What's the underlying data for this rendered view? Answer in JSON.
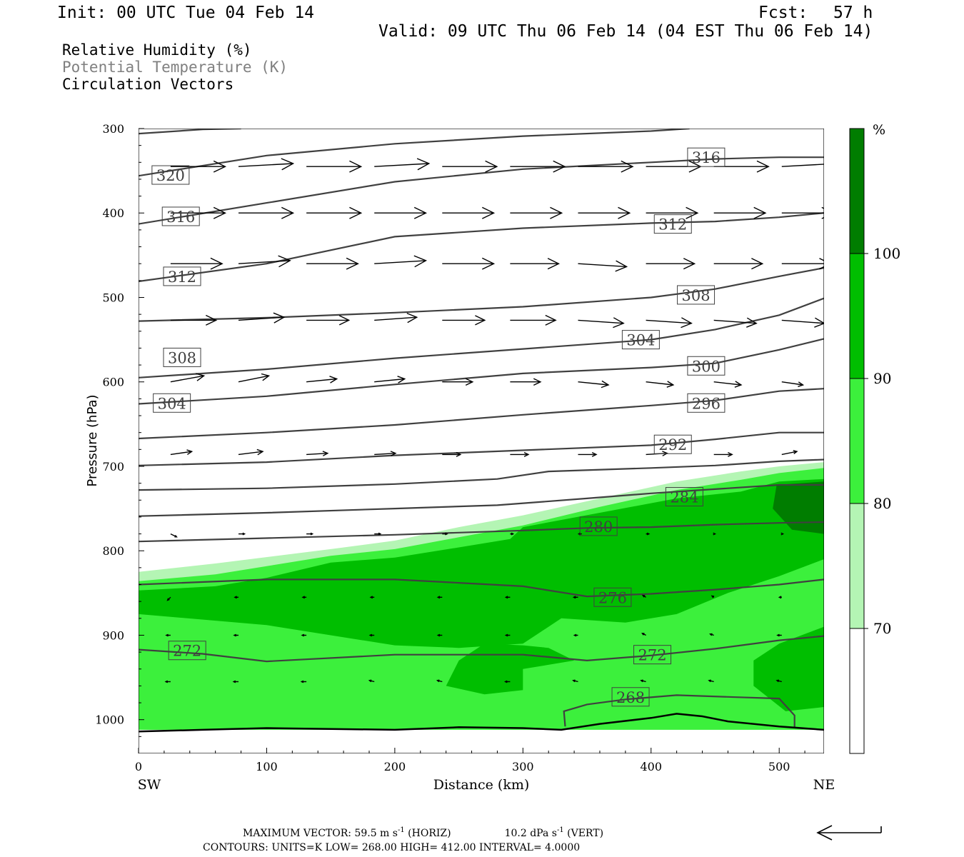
{
  "header": {
    "init": "Init: 00 UTC Tue 04 Feb 14",
    "fcst_label": "Fcst:",
    "fcst_value": "57 h",
    "valid": "Valid: 09 UTC Thu 06 Feb 14 (04 EST Thu 06 Feb 14)"
  },
  "fields": {
    "rh": "Relative Humidity (%)",
    "theta": "Potential Temperature (K)",
    "vectors": "Circulation Vectors"
  },
  "footer": {
    "max_prefix": "MAXIMUM VECTOR:  59.5 m s",
    "max_exp": "-1",
    "max_mid": " (HORIZ)",
    "max_vert": "10.2 dPa s",
    "max_vert_exp": "-1",
    "max_vert_suffix": " (VERT)",
    "contours": "CONTOURS:  UNITS=K  LOW=  268.00       HIGH=  412.00       INTERVAL=    4.0000"
  },
  "chart_data": {
    "type": "heatmap",
    "title": "",
    "xlabel": "Distance (km)",
    "ylabel": "Pressure (hPa)",
    "xlim": [
      0,
      535
    ],
    "ylim": [
      1040,
      300
    ],
    "x_ticks": [
      0,
      100,
      200,
      300,
      400,
      500
    ],
    "y_ticks": [
      300,
      400,
      500,
      600,
      700,
      800,
      900,
      1000
    ],
    "x_end_labels": {
      "left": "SW",
      "right": "NE"
    },
    "colorbar": {
      "unit": "%",
      "levels": [
        70,
        80,
        90,
        100
      ],
      "colors": [
        "#ffffff",
        "#b4f5b4",
        "#3cf03c",
        "#00be00",
        "#007d00"
      ]
    },
    "rh_regions": [
      {
        "level": 70,
        "polygon": [
          [
            0,
            825
          ],
          [
            60,
            815
          ],
          [
            150,
            798
          ],
          [
            200,
            788
          ],
          [
            250,
            772
          ],
          [
            300,
            758
          ],
          [
            360,
            738
          ],
          [
            420,
            718
          ],
          [
            470,
            706
          ],
          [
            500,
            700
          ],
          [
            535,
            695
          ],
          [
            535,
            1012
          ],
          [
            0,
            1012
          ]
        ]
      },
      {
        "level": 80,
        "polygon": [
          [
            0,
            836
          ],
          [
            60,
            828
          ],
          [
            150,
            806
          ],
          [
            200,
            798
          ],
          [
            250,
            784
          ],
          [
            300,
            770
          ],
          [
            360,
            748
          ],
          [
            420,
            728
          ],
          [
            470,
            716
          ],
          [
            500,
            708
          ],
          [
            535,
            702
          ],
          [
            535,
            1012
          ],
          [
            0,
            1012
          ]
        ]
      },
      {
        "level": 90,
        "polygon": [
          [
            0,
            847
          ],
          [
            60,
            842
          ],
          [
            100,
            832
          ],
          [
            150,
            814
          ],
          [
            200,
            808
          ],
          [
            250,
            796
          ],
          [
            290,
            786
          ],
          [
            300,
            772
          ],
          [
            360,
            755
          ],
          [
            420,
            738
          ],
          [
            470,
            730
          ],
          [
            500,
            718
          ],
          [
            535,
            715
          ],
          [
            535,
            810
          ],
          [
            500,
            830
          ],
          [
            460,
            850
          ],
          [
            420,
            875
          ],
          [
            380,
            885
          ],
          [
            330,
            880
          ],
          [
            300,
            910
          ],
          [
            250,
            915
          ],
          [
            200,
            912
          ],
          [
            150,
            900
          ],
          [
            100,
            888
          ],
          [
            0,
            875
          ]
        ]
      },
      {
        "level": 90,
        "polygon": [
          [
            240,
            960
          ],
          [
            250,
            930
          ],
          [
            270,
            910
          ],
          [
            300,
            912
          ],
          [
            320,
            915
          ],
          [
            340,
            930
          ],
          [
            300,
            940
          ],
          [
            300,
            965
          ],
          [
            270,
            970
          ]
        ]
      },
      {
        "level": 90,
        "polygon": [
          [
            480,
            960
          ],
          [
            480,
            930
          ],
          [
            500,
            910
          ],
          [
            535,
            890
          ],
          [
            535,
            985
          ],
          [
            505,
            990
          ]
        ]
      },
      {
        "level": 100,
        "polygon": [
          [
            498,
            722
          ],
          [
            535,
            718
          ],
          [
            535,
            780
          ],
          [
            510,
            775
          ],
          [
            495,
            750
          ]
        ]
      }
    ],
    "theta_contours": [
      {
        "value": 268,
        "points": [
          [
            333,
            1008
          ],
          [
            332,
            990
          ],
          [
            350,
            982
          ],
          [
            380,
            976
          ],
          [
            420,
            971
          ],
          [
            460,
            973
          ],
          [
            500,
            975
          ],
          [
            512,
            995
          ],
          [
            512,
            1010
          ]
        ]
      },
      {
        "value": 272,
        "points": [
          [
            0,
            917
          ],
          [
            50,
            922
          ],
          [
            100,
            931
          ],
          [
            200,
            923
          ],
          [
            300,
            923
          ],
          [
            350,
            930
          ],
          [
            400,
            924
          ],
          [
            450,
            916
          ],
          [
            500,
            906
          ],
          [
            535,
            901
          ]
        ]
      },
      {
        "value": 276,
        "points": [
          [
            0,
            840
          ],
          [
            100,
            834
          ],
          [
            200,
            834
          ],
          [
            250,
            838
          ],
          [
            300,
            842
          ],
          [
            350,
            854
          ],
          [
            400,
            851
          ],
          [
            450,
            846
          ],
          [
            500,
            840
          ],
          [
            535,
            834
          ]
        ]
      },
      {
        "value": 280,
        "points": [
          [
            0,
            789
          ],
          [
            100,
            785
          ],
          [
            200,
            781
          ],
          [
            300,
            776
          ],
          [
            350,
            773
          ],
          [
            400,
            772
          ],
          [
            450,
            769
          ],
          [
            500,
            767
          ],
          [
            535,
            766
          ]
        ]
      },
      {
        "value": 284,
        "points": [
          [
            0,
            759
          ],
          [
            100,
            755
          ],
          [
            200,
            750
          ],
          [
            280,
            746
          ],
          [
            350,
            738
          ],
          [
            400,
            732
          ],
          [
            450,
            727
          ],
          [
            500,
            722
          ],
          [
            535,
            722
          ]
        ]
      },
      {
        "value": 288,
        "points": [
          [
            0,
            728
          ],
          [
            100,
            726
          ],
          [
            200,
            721
          ],
          [
            280,
            715
          ],
          [
            320,
            706
          ],
          [
            400,
            702
          ],
          [
            450,
            699
          ],
          [
            500,
            694
          ],
          [
            535,
            692
          ]
        ]
      },
      {
        "value": 292,
        "points": [
          [
            0,
            699
          ],
          [
            100,
            695
          ],
          [
            200,
            687
          ],
          [
            300,
            681
          ],
          [
            400,
            675
          ],
          [
            450,
            668
          ],
          [
            500,
            660
          ],
          [
            535,
            660
          ]
        ]
      },
      {
        "value": 296,
        "points": [
          [
            0,
            667
          ],
          [
            100,
            660
          ],
          [
            200,
            651
          ],
          [
            300,
            639
          ],
          [
            400,
            628
          ],
          [
            450,
            622
          ],
          [
            500,
            611
          ],
          [
            535,
            608
          ]
        ]
      },
      {
        "value": 300,
        "points": [
          [
            0,
            626
          ],
          [
            100,
            617
          ],
          [
            200,
            603
          ],
          [
            300,
            590
          ],
          [
            400,
            583
          ],
          [
            450,
            578
          ],
          [
            500,
            562
          ],
          [
            535,
            549
          ]
        ]
      },
      {
        "value": 304,
        "points": [
          [
            0,
            595
          ],
          [
            100,
            585
          ],
          [
            200,
            572
          ],
          [
            300,
            561
          ],
          [
            400,
            550
          ],
          [
            450,
            538
          ],
          [
            500,
            521
          ],
          [
            535,
            501
          ]
        ]
      },
      {
        "value": 308,
        "points": [
          [
            0,
            528
          ],
          [
            100,
            524
          ],
          [
            200,
            518
          ],
          [
            300,
            511
          ],
          [
            400,
            500
          ],
          [
            450,
            490
          ],
          [
            500,
            475
          ],
          [
            535,
            465
          ]
        ]
      },
      {
        "value": 312,
        "points": [
          [
            0,
            481
          ],
          [
            100,
            460
          ],
          [
            200,
            428
          ],
          [
            300,
            418
          ],
          [
            400,
            412
          ],
          [
            450,
            410
          ],
          [
            500,
            405
          ],
          [
            535,
            400
          ]
        ]
      },
      {
        "value": 316,
        "points": [
          [
            0,
            413
          ],
          [
            100,
            388
          ],
          [
            200,
            363
          ],
          [
            300,
            348
          ],
          [
            400,
            340
          ],
          [
            450,
            336
          ],
          [
            500,
            334
          ],
          [
            535,
            334
          ]
        ]
      },
      {
        "value": 320,
        "points": [
          [
            0,
            356
          ],
          [
            100,
            332
          ],
          [
            200,
            318
          ],
          [
            300,
            309
          ],
          [
            400,
            303
          ],
          [
            430,
            300
          ]
        ]
      },
      {
        "value": 324,
        "points": [
          [
            0,
            306
          ],
          [
            50,
            301
          ],
          [
            80,
            300
          ]
        ]
      }
    ],
    "contour_labels": [
      {
        "value": 320,
        "x": 25,
        "p": 355
      },
      {
        "value": 316,
        "x": 33,
        "p": 404
      },
      {
        "value": 316,
        "x": 443,
        "p": 334
      },
      {
        "value": 312,
        "x": 34,
        "p": 475
      },
      {
        "value": 312,
        "x": 417,
        "p": 413
      },
      {
        "value": 308,
        "x": 34,
        "p": 571
      },
      {
        "value": 308,
        "x": 435,
        "p": 497
      },
      {
        "value": 304,
        "x": 26,
        "p": 625
      },
      {
        "value": 304,
        "x": 392,
        "p": 550
      },
      {
        "value": 300,
        "x": 443,
        "p": 581
      },
      {
        "value": 296,
        "x": 443,
        "p": 625
      },
      {
        "value": 292,
        "x": 417,
        "p": 674
      },
      {
        "value": 284,
        "x": 426,
        "p": 736
      },
      {
        "value": 280,
        "x": 359,
        "p": 771
      },
      {
        "value": 276,
        "x": 370,
        "p": 855
      },
      {
        "value": 272,
        "x": 38,
        "p": 918
      },
      {
        "value": 272,
        "x": 401,
        "p": 923
      },
      {
        "value": 268,
        "x": 384,
        "p": 973
      }
    ],
    "vectors": [
      {
        "p": 345,
        "u": [
          0.9,
          0.9,
          0.9,
          0.9,
          0.9,
          0.9,
          0.9,
          0.9,
          0.9,
          0.9
        ],
        "w": [
          0,
          0.05,
          0,
          0.05,
          0,
          0,
          0,
          0,
          0,
          0.05
        ]
      },
      {
        "p": 400,
        "u": [
          0.9,
          0.9,
          0.9,
          0.85,
          0.85,
          0.85,
          0.85,
          0.85,
          0.85,
          0.85
        ],
        "w": [
          0,
          0,
          0,
          0,
          0,
          0,
          0,
          0,
          0,
          0
        ]
      },
      {
        "p": 460,
        "u": [
          0.85,
          0.85,
          0.85,
          0.85,
          0.85,
          0.8,
          0.8,
          0.8,
          0.8,
          0.8
        ],
        "w": [
          0,
          0.05,
          0,
          0.05,
          0,
          0,
          -0.05,
          0,
          0,
          0
        ]
      },
      {
        "p": 527,
        "u": [
          0.75,
          0.75,
          0.7,
          0.7,
          0.7,
          0.75,
          0.75,
          0.75,
          0.7,
          0.7
        ],
        "w": [
          0,
          0.05,
          0,
          0.05,
          0,
          0,
          -0.05,
          -0.05,
          -0.05,
          -0.05
        ]
      },
      {
        "p": 600,
        "u": [
          0.55,
          0.5,
          0.5,
          0.5,
          0.5,
          0.5,
          0.5,
          0.45,
          0.45,
          0.35
        ],
        "w": [
          0.1,
          0.1,
          0.05,
          0.05,
          0,
          0,
          -0.05,
          -0.05,
          -0.05,
          -0.05
        ]
      },
      {
        "p": 686,
        "u": [
          0.35,
          0.4,
          0.35,
          0.35,
          0.3,
          0.3,
          0.3,
          0.35,
          0.3,
          0.25
        ],
        "w": [
          0.05,
          0.05,
          0.02,
          0.02,
          0,
          0,
          0,
          0.02,
          0,
          0.05
        ]
      },
      {
        "p": 780,
        "u": [
          0.1,
          0.1,
          0.1,
          0.1,
          0.08,
          0.05,
          0.05,
          0.05,
          0.02,
          0.02
        ],
        "w": [
          -0.05,
          0,
          0,
          0,
          0,
          0,
          0,
          0,
          0,
          0
        ]
      },
      {
        "p": 855,
        "u": [
          -0.05,
          -0.06,
          -0.06,
          -0.06,
          -0.07,
          -0.07,
          -0.07,
          -0.05,
          -0.03,
          -0.04
        ],
        "w": [
          -0.05,
          0,
          0,
          0,
          0,
          0,
          0,
          0.03,
          0.02,
          0
        ]
      },
      {
        "p": 900,
        "u": [
          -0.07,
          -0.07,
          -0.07,
          -0.07,
          -0.07,
          -0.07,
          -0.06,
          -0.06,
          -0.06,
          -0.07
        ],
        "w": [
          0,
          0,
          0,
          0,
          0,
          0,
          0,
          0.03,
          0.02,
          0
        ]
      },
      {
        "p": 955,
        "u": [
          -0.08,
          -0.08,
          -0.08,
          -0.08,
          -0.08,
          -0.08,
          -0.08,
          -0.08,
          -0.08,
          -0.08
        ],
        "w": [
          0,
          0,
          0,
          0.02,
          0.02,
          0,
          0.02,
          0.02,
          0.02,
          0.02
        ]
      }
    ],
    "terrain": [
      [
        0,
        1014
      ],
      [
        50,
        1012
      ],
      [
        100,
        1010
      ],
      [
        200,
        1012
      ],
      [
        250,
        1009
      ],
      [
        300,
        1010
      ],
      [
        330,
        1012
      ],
      [
        360,
        1005
      ],
      [
        400,
        998
      ],
      [
        420,
        993
      ],
      [
        440,
        996
      ],
      [
        460,
        1002
      ],
      [
        500,
        1008
      ],
      [
        535,
        1012
      ]
    ]
  }
}
